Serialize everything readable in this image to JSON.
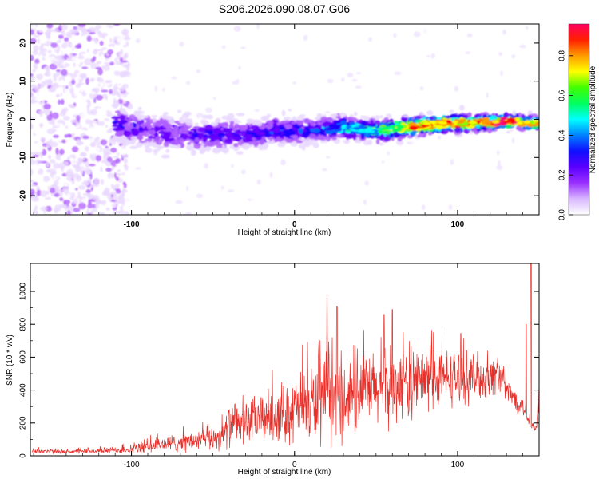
{
  "title": "S206.2026.090.08.07.G06",
  "chart_data": [
    {
      "type": "heatmap",
      "title": "S206.2026.090.08.07.G06",
      "xlabel": "Height of straight line (km)",
      "ylabel": "Frequency (Hz)",
      "xlim": [
        -162,
        150
      ],
      "ylim": [
        -25,
        25
      ],
      "x_ticks": [
        -100,
        0,
        100
      ],
      "y_ticks": [
        -20,
        -10,
        0,
        10,
        20
      ],
      "colorbar": {
        "label": "Normalized spectral amplitude",
        "range": [
          0,
          0.96
        ],
        "ticks": [
          "0.0",
          "0.2",
          "0.4",
          "0.6",
          "0.8"
        ],
        "colors": [
          "#ffffff",
          "#e9d8ff",
          "#b060ff",
          "#6a00ff",
          "#1d00ff",
          "#0070ff",
          "#00ffff",
          "#00ff60",
          "#80ff00",
          "#ffff00",
          "#ff9900",
          "#ff0000",
          "#ff0080"
        ]
      },
      "ridge": {
        "x": [
          -110,
          -90,
          -70,
          -50,
          -30,
          -10,
          10,
          30,
          50,
          70,
          90,
          110,
          130,
          148
        ],
        "frequency": [
          -1,
          -3,
          -4,
          -4,
          -4,
          -3,
          -3,
          -2,
          -3,
          -2,
          -1,
          -1,
          -0.5,
          -1
        ],
        "peak_amplitude": [
          0.25,
          0.2,
          0.22,
          0.25,
          0.25,
          0.3,
          0.3,
          0.45,
          0.55,
          0.8,
          0.85,
          0.8,
          0.9,
          0.75
        ]
      }
    },
    {
      "type": "line",
      "xlabel": "Height of straight line (km)",
      "ylabel": "SNR (10 * v/v)",
      "xlim": [
        -162,
        150
      ],
      "ylim": [
        0,
        1170
      ],
      "x_ticks": [
        -100,
        0,
        100
      ],
      "y_ticks": [
        0,
        200,
        400,
        600,
        800,
        1000
      ],
      "color": "#e8302a",
      "series": [
        {
          "name": "SNR",
          "x": [
            -160,
            -140,
            -120,
            -100,
            -80,
            -60,
            -45,
            -40,
            -20,
            0,
            10,
            20,
            30,
            40,
            50,
            60,
            70,
            80,
            90,
            100,
            110,
            120,
            125,
            130,
            135,
            140,
            145,
            148,
            150
          ],
          "mean": [
            30,
            25,
            30,
            40,
            70,
            90,
            120,
            180,
            230,
            280,
            310,
            330,
            350,
            380,
            400,
            420,
            440,
            460,
            470,
            480,
            480,
            470,
            520,
            400,
            350,
            300,
            200,
            150,
            300
          ],
          "spread": [
            20,
            15,
            20,
            35,
            60,
            80,
            100,
            150,
            180,
            250,
            300,
            320,
            300,
            280,
            280,
            270,
            260,
            250,
            220,
            200,
            180,
            160,
            150,
            100,
            90,
            80,
            60,
            50,
            100
          ],
          "peaks": [
            [
              20,
              975
            ],
            [
              26,
              910
            ],
            [
              55,
              860
            ],
            [
              60,
              890
            ],
            [
              142,
              800
            ],
            [
              145,
              1165
            ]
          ]
        }
      ]
    }
  ]
}
